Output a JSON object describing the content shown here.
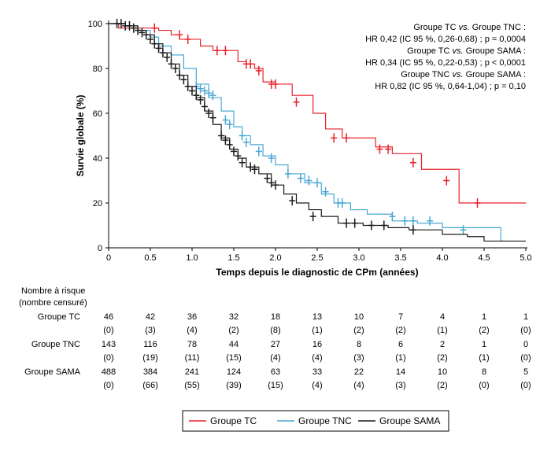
{
  "chart_data": {
    "type": "line",
    "subtype": "kaplan-meier",
    "xlabel": "Temps depuis le diagnostic de CPm (années)",
    "ylabel": "Survie globale (%)",
    "xlim": [
      0,
      5
    ],
    "ylim": [
      0,
      100
    ],
    "xticks": [
      "0",
      "0.5",
      "1.0",
      "1.5",
      "2.0",
      "2.5",
      "3.0",
      "3.5",
      "4.0",
      "4.5",
      "5.0"
    ],
    "yticks": [
      "0",
      "20",
      "40",
      "60",
      "80",
      "100"
    ],
    "grid": false,
    "legend_position": "bottom",
    "annotations": [
      {
        "text": "Groupe TC vs. Groupe TNC :",
        "italic_word": "vs."
      },
      {
        "text": "HR 0,42 (IC 95 %, 0,26-0,68) ; p = 0,0004"
      },
      {
        "text": "Groupe TC vs. Groupe SAMA :",
        "italic_word": "vs."
      },
      {
        "text": "HR 0,34 (IC 95 %, 0,22-0,53) ; p < 0,0001"
      },
      {
        "text": "Groupe TNC vs. Groupe SAMA :",
        "italic_word": "vs."
      },
      {
        "text": "HR 0,82 (IC 95 %, 0,64-1,04) ; p = 0,10"
      }
    ],
    "series": [
      {
        "name": "Groupe TC",
        "color": "#e8212b",
        "steps": [
          [
            0,
            100
          ],
          [
            0.12,
            98
          ],
          [
            0.5,
            98
          ],
          [
            0.6,
            97
          ],
          [
            0.75,
            95
          ],
          [
            0.85,
            93
          ],
          [
            1.1,
            90
          ],
          [
            1.25,
            88
          ],
          [
            1.55,
            83
          ],
          [
            1.65,
            82
          ],
          [
            1.75,
            80
          ],
          [
            1.85,
            74
          ],
          [
            2.0,
            73
          ],
          [
            2.2,
            68
          ],
          [
            2.45,
            60
          ],
          [
            2.6,
            53
          ],
          [
            2.8,
            49
          ],
          [
            3.2,
            45
          ],
          [
            3.4,
            42
          ],
          [
            3.75,
            35
          ],
          [
            4.2,
            20
          ],
          [
            5.0,
            20
          ]
        ],
        "censored": [
          [
            0.55,
            98
          ],
          [
            0.85,
            95
          ],
          [
            0.95,
            93
          ],
          [
            1.3,
            88
          ],
          [
            1.4,
            88
          ],
          [
            1.65,
            82
          ],
          [
            1.7,
            82
          ],
          [
            1.8,
            79
          ],
          [
            1.95,
            73
          ],
          [
            2.0,
            73
          ],
          [
            2.25,
            65
          ],
          [
            2.7,
            49
          ],
          [
            2.85,
            49
          ],
          [
            3.25,
            44
          ],
          [
            3.35,
            44
          ],
          [
            3.65,
            38
          ],
          [
            4.05,
            30
          ],
          [
            4.42,
            20
          ]
        ]
      },
      {
        "name": "Groupe TNC",
        "color": "#4aa7d4",
        "steps": [
          [
            0,
            100
          ],
          [
            0.2,
            99
          ],
          [
            0.35,
            97
          ],
          [
            0.5,
            94
          ],
          [
            0.6,
            90
          ],
          [
            0.75,
            86
          ],
          [
            0.9,
            80
          ],
          [
            1.05,
            73
          ],
          [
            1.2,
            67
          ],
          [
            1.35,
            61
          ],
          [
            1.5,
            54
          ],
          [
            1.6,
            50
          ],
          [
            1.7,
            46
          ],
          [
            1.85,
            41
          ],
          [
            2.0,
            37
          ],
          [
            2.15,
            33
          ],
          [
            2.35,
            29
          ],
          [
            2.55,
            24
          ],
          [
            2.7,
            20
          ],
          [
            2.9,
            17
          ],
          [
            3.1,
            15
          ],
          [
            3.4,
            12
          ],
          [
            3.7,
            11
          ],
          [
            4.0,
            9
          ],
          [
            4.45,
            9
          ],
          [
            4.7,
            3
          ],
          [
            4.75,
            3
          ]
        ],
        "censored": [
          [
            1.05,
            72
          ],
          [
            1.1,
            71
          ],
          [
            1.15,
            70
          ],
          [
            1.2,
            69
          ],
          [
            1.25,
            68
          ],
          [
            1.4,
            57
          ],
          [
            1.45,
            55
          ],
          [
            1.6,
            50
          ],
          [
            1.65,
            47
          ],
          [
            1.8,
            43
          ],
          [
            1.95,
            40
          ],
          [
            2.15,
            33
          ],
          [
            2.3,
            31
          ],
          [
            2.4,
            30
          ],
          [
            2.5,
            29
          ],
          [
            2.6,
            25
          ],
          [
            2.75,
            20
          ],
          [
            2.8,
            20
          ],
          [
            3.4,
            14
          ],
          [
            3.55,
            12
          ],
          [
            3.65,
            12
          ],
          [
            3.85,
            12
          ],
          [
            4.25,
            8
          ]
        ]
      },
      {
        "name": "Groupe SAMA",
        "color": "#1a1a1a",
        "steps": [
          [
            0,
            100
          ],
          [
            0.2,
            99
          ],
          [
            0.35,
            97
          ],
          [
            0.45,
            95
          ],
          [
            0.55,
            91
          ],
          [
            0.65,
            87
          ],
          [
            0.75,
            82
          ],
          [
            0.85,
            77
          ],
          [
            0.95,
            72
          ],
          [
            1.05,
            67
          ],
          [
            1.15,
            61
          ],
          [
            1.25,
            55
          ],
          [
            1.35,
            49
          ],
          [
            1.45,
            44
          ],
          [
            1.55,
            40
          ],
          [
            1.65,
            36
          ],
          [
            1.8,
            33
          ],
          [
            1.95,
            28
          ],
          [
            2.1,
            24
          ],
          [
            2.25,
            20
          ],
          [
            2.4,
            17
          ],
          [
            2.55,
            14
          ],
          [
            2.75,
            11
          ],
          [
            3.05,
            10
          ],
          [
            3.35,
            9
          ],
          [
            3.6,
            8
          ],
          [
            4.0,
            6
          ],
          [
            4.3,
            5
          ],
          [
            4.5,
            3
          ],
          [
            5.0,
            3
          ]
        ],
        "censored": [
          [
            0.1,
            100
          ],
          [
            0.15,
            100
          ],
          [
            0.2,
            99
          ],
          [
            0.25,
            99
          ],
          [
            0.3,
            98
          ],
          [
            0.35,
            97
          ],
          [
            0.4,
            96
          ],
          [
            0.45,
            95
          ],
          [
            0.5,
            93
          ],
          [
            0.55,
            91
          ],
          [
            0.6,
            89
          ],
          [
            0.65,
            87
          ],
          [
            0.7,
            85
          ],
          [
            0.75,
            82
          ],
          [
            0.8,
            80
          ],
          [
            0.85,
            77
          ],
          [
            0.9,
            75
          ],
          [
            0.95,
            72
          ],
          [
            1.0,
            70
          ],
          [
            1.05,
            68
          ],
          [
            1.1,
            66
          ],
          [
            1.15,
            63
          ],
          [
            1.2,
            60
          ],
          [
            1.25,
            58
          ],
          [
            1.35,
            50
          ],
          [
            1.4,
            48
          ],
          [
            1.45,
            46
          ],
          [
            1.5,
            43
          ],
          [
            1.55,
            41
          ],
          [
            1.6,
            38
          ],
          [
            1.7,
            36
          ],
          [
            1.75,
            35
          ],
          [
            1.9,
            31
          ],
          [
            1.95,
            29
          ],
          [
            2.0,
            28
          ],
          [
            2.2,
            21
          ],
          [
            2.45,
            14
          ],
          [
            2.85,
            11
          ],
          [
            2.95,
            11
          ],
          [
            3.15,
            10
          ],
          [
            3.3,
            10
          ],
          [
            3.65,
            8
          ]
        ]
      }
    ]
  },
  "table": {
    "heading": [
      "Nombre à risque",
      "(nombre censuré)"
    ],
    "rows": [
      {
        "group": "Groupe TC",
        "at_risk": [
          "46",
          "42",
          "36",
          "32",
          "18",
          "13",
          "10",
          "7",
          "4",
          "1",
          "1"
        ],
        "censored": [
          "(0)",
          "(3)",
          "(4)",
          "(2)",
          "(8)",
          "(1)",
          "(2)",
          "(2)",
          "(1)",
          "(2)",
          "(0)"
        ]
      },
      {
        "group": "Groupe TNC",
        "at_risk": [
          "143",
          "116",
          "78",
          "44",
          "27",
          "16",
          "8",
          "6",
          "2",
          "1",
          "0"
        ],
        "censored": [
          "(0)",
          "(19)",
          "(11)",
          "(15)",
          "(4)",
          "(4)",
          "(3)",
          "(1)",
          "(2)",
          "(1)",
          "(0)"
        ]
      },
      {
        "group": "Groupe SAMA",
        "at_risk": [
          "488",
          "384",
          "241",
          "124",
          "63",
          "33",
          "22",
          "14",
          "10",
          "8",
          "5"
        ],
        "censored": [
          "(0)",
          "(66)",
          "(55)",
          "(39)",
          "(15)",
          "(4)",
          "(4)",
          "(3)",
          "(2)",
          "(0)",
          "(0)"
        ]
      }
    ]
  },
  "legend": [
    {
      "label": "Groupe TC",
      "color": "#e8212b"
    },
    {
      "label": "Groupe TNC",
      "color": "#4aa7d4"
    },
    {
      "label": "Groupe SAMA",
      "color": "#1a1a1a"
    }
  ]
}
